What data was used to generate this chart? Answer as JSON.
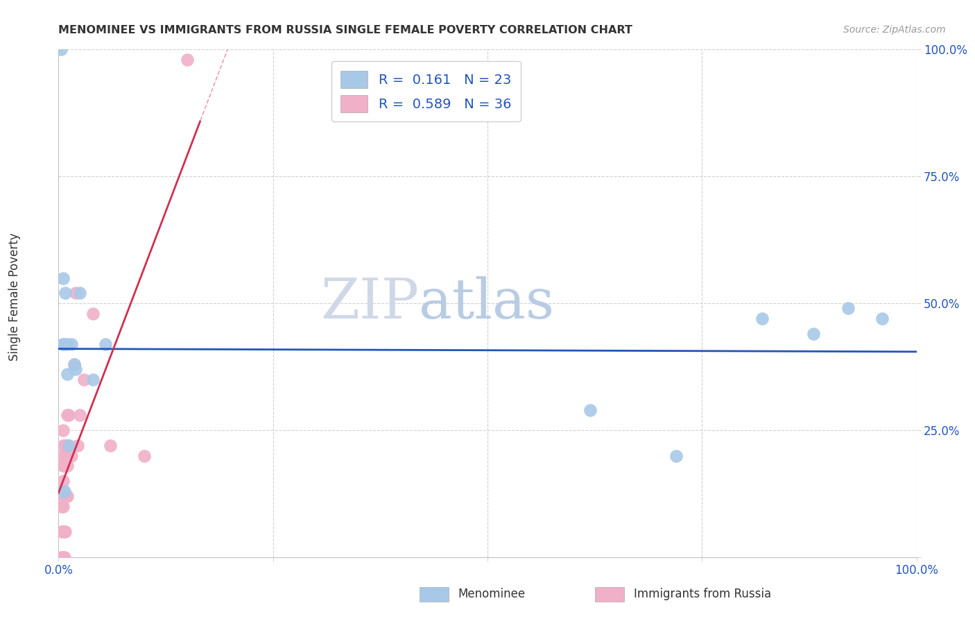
{
  "title": "MENOMINEE VS IMMIGRANTS FROM RUSSIA SINGLE FEMALE POVERTY CORRELATION CHART",
  "source": "Source: ZipAtlas.com",
  "ylabel": "Single Female Poverty",
  "xlim": [
    0,
    1.0
  ],
  "ylim": [
    0,
    1.0
  ],
  "menominee_color": "#a8c8e8",
  "russia_color": "#f0b0c8",
  "menominee_line_color": "#2255bb",
  "russia_line_color": "#d03050",
  "russia_dash_color": "#e8a0b0",
  "menominee_R": 0.161,
  "menominee_N": 23,
  "russia_R": 0.589,
  "russia_N": 36,
  "menominee_x": [
    0.003,
    0.005,
    0.005,
    0.005,
    0.007,
    0.008,
    0.008,
    0.01,
    0.01,
    0.012,
    0.015,
    0.018,
    0.02,
    0.025,
    0.04,
    0.055,
    0.62,
    0.72,
    0.82,
    0.88,
    0.92,
    0.96,
    0.005
  ],
  "menominee_y": [
    1.0,
    0.42,
    0.55,
    0.42,
    0.13,
    0.52,
    0.42,
    0.42,
    0.36,
    0.22,
    0.42,
    0.38,
    0.37,
    0.52,
    0.35,
    0.42,
    0.29,
    0.2,
    0.47,
    0.44,
    0.49,
    0.47,
    0.13
  ],
  "russia_x": [
    0.003,
    0.004,
    0.004,
    0.005,
    0.005,
    0.005,
    0.005,
    0.005,
    0.005,
    0.005,
    0.005,
    0.006,
    0.006,
    0.006,
    0.007,
    0.007,
    0.008,
    0.008,
    0.009,
    0.009,
    0.01,
    0.01,
    0.01,
    0.01,
    0.012,
    0.012,
    0.015,
    0.018,
    0.02,
    0.022,
    0.025,
    0.03,
    0.04,
    0.06,
    0.1,
    0.15
  ],
  "russia_y": [
    0.0,
    0.05,
    0.1,
    0.0,
    0.05,
    0.1,
    0.15,
    0.18,
    0.2,
    0.22,
    0.25,
    0.05,
    0.12,
    0.18,
    0.0,
    0.12,
    0.05,
    0.22,
    0.12,
    0.2,
    0.12,
    0.18,
    0.22,
    0.28,
    0.22,
    0.28,
    0.2,
    0.38,
    0.52,
    0.22,
    0.28,
    0.35,
    0.48,
    0.22,
    0.2,
    0.98
  ]
}
